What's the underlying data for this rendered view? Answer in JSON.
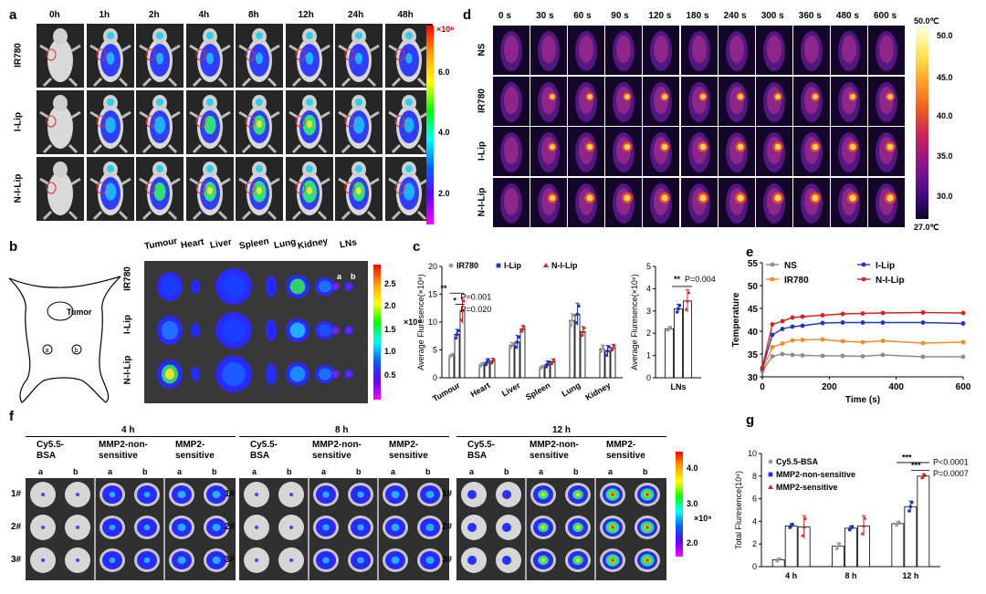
{
  "panels": {
    "a": "a",
    "b": "b",
    "c": "c",
    "d": "d",
    "e": "e",
    "f": "f",
    "g": "g"
  },
  "a": {
    "times": [
      "0h",
      "1h",
      "2h",
      "4h",
      "8h",
      "12h",
      "24h",
      "48h"
    ],
    "rows": [
      "IR780",
      "I-Lip",
      "N-I-Lip"
    ],
    "colorbar": {
      "exp": "×10⁸",
      "ticks": [
        "6.0",
        "4.0",
        "2.0"
      ]
    }
  },
  "d": {
    "times": [
      "0 s",
      "30 s",
      "60 s",
      "90 s",
      "120 s",
      "180 s",
      "240 s",
      "300 s",
      "360 s",
      "480 s",
      "600 s"
    ],
    "rows": [
      "NS",
      "IR780",
      "I-Lip",
      "N-I-Lip"
    ],
    "colorbar": {
      "top": "50.0℃",
      "bottom": "27.0℃",
      "ticks": [
        "50.0",
        "45.0",
        "40.0",
        "35.0",
        "30.0"
      ]
    }
  },
  "b": {
    "organs": [
      "Tumour",
      "Heart",
      "Liver",
      "Spleen",
      "Lung",
      "Kidney",
      "LNs"
    ],
    "rows": [
      "IR780",
      "I-Lip",
      "N-I-Lip"
    ],
    "ln_labels": [
      "a",
      "b"
    ],
    "schematic": {
      "tumor_label": "Tumor",
      "a": "a",
      "b": "b"
    },
    "colorbar": {
      "exp": "×10⁸",
      "ticks": [
        "2.5",
        "2.0",
        "1.5",
        "1.0",
        "0.5"
      ]
    }
  },
  "chart_data": [
    {
      "type": "bar",
      "panel": "c",
      "ylabel": "Average Fluresence(×10⁸)",
      "categories": [
        "Tumour",
        "Heart",
        "Liver",
        "Spleen",
        "Lung",
        "Kidney"
      ],
      "ylim": [
        0,
        20
      ],
      "yticks": [
        "0",
        "5",
        "10",
        "15",
        "20"
      ],
      "series": [
        {
          "name": "IR780",
          "values": [
            4.0,
            2.3,
            5.8,
            1.9,
            10.3,
            5.2
          ],
          "err": [
            0.3,
            0.4,
            0.5,
            0.3,
            1.2,
            0.7
          ],
          "color": "#999999",
          "marker": "circle"
        },
        {
          "name": "I-Lip",
          "values": [
            7.8,
            2.8,
            6.4,
            2.4,
            11.4,
            4.8
          ],
          "err": [
            0.9,
            0.6,
            1.2,
            0.6,
            2.0,
            1.0
          ],
          "color": "#1f35c8",
          "marker": "square"
        },
        {
          "name": "N-I-Lip",
          "values": [
            12.1,
            3.0,
            8.8,
            2.9,
            8.3,
            5.4
          ],
          "err": [
            2.3,
            0.5,
            0.6,
            0.5,
            0.9,
            0.6
          ],
          "color": "#d92020",
          "marker": "triangle"
        }
      ],
      "annotations": [
        {
          "text": "**",
          "label": "P=0.001"
        },
        {
          "text": "*",
          "label": "P=0.020"
        }
      ]
    },
    {
      "type": "bar",
      "panel": "c-right",
      "ylabel": "Average Fluresence(×10⁸)",
      "categories": [
        "LNs"
      ],
      "ylim": [
        0,
        5
      ],
      "yticks": [
        "0",
        "1",
        "2",
        "3",
        "4",
        "5"
      ],
      "series": [
        {
          "name": "IR780",
          "values": [
            2.2
          ],
          "err": [
            0.1
          ],
          "color": "#999999",
          "marker": "circle"
        },
        {
          "name": "I-Lip",
          "values": [
            3.1
          ],
          "err": [
            0.2
          ],
          "color": "#1f35c8",
          "marker": "square"
        },
        {
          "name": "N-I-Lip",
          "values": [
            3.45
          ],
          "err": [
            0.5
          ],
          "color": "#d92020",
          "marker": "triangle"
        }
      ],
      "annotations": [
        {
          "text": "**",
          "label": "P=0.004"
        }
      ]
    },
    {
      "type": "line",
      "panel": "e",
      "xlabel": "Time (s)",
      "ylabel": "Temperature",
      "x": [
        0,
        30,
        60,
        90,
        120,
        180,
        240,
        300,
        360,
        480,
        600
      ],
      "xlim": [
        0,
        600
      ],
      "ylim": [
        30,
        55
      ],
      "xticks": [
        "0",
        "200",
        "400",
        "600"
      ],
      "yticks": [
        "30",
        "35",
        "40",
        "45",
        "50",
        "55"
      ],
      "series": [
        {
          "name": "NS",
          "color": "#8c8c8c",
          "values": [
            31.2,
            34.5,
            35.0,
            34.8,
            34.7,
            34.6,
            34.6,
            34.5,
            34.8,
            34.4,
            34.4
          ]
        },
        {
          "name": "IR780",
          "color": "#f08a24",
          "values": [
            31.5,
            36.5,
            37.3,
            38.0,
            38.1,
            38.2,
            37.8,
            37.6,
            37.9,
            37.4,
            37.6
          ]
        },
        {
          "name": "I-Lip",
          "color": "#1f35c8",
          "values": [
            31.8,
            39.2,
            40.5,
            41.0,
            41.2,
            41.8,
            41.9,
            41.9,
            41.9,
            41.9,
            41.7
          ]
        },
        {
          "name": "N-I-Lip",
          "color": "#d92020",
          "values": [
            32.0,
            41.5,
            42.2,
            43.0,
            43.2,
            43.5,
            43.8,
            43.9,
            44.0,
            44.1,
            44.0
          ]
        }
      ]
    },
    {
      "type": "bar",
      "panel": "g",
      "ylabel": "Total Fluresence(10⁹)",
      "categories": [
        "4 h",
        "8 h",
        "12 h"
      ],
      "ylim": [
        0,
        10
      ],
      "yticks": [
        "0",
        "2",
        "4",
        "6",
        "8",
        "10"
      ],
      "series": [
        {
          "name": "Cy5.5-BSA",
          "values": [
            0.6,
            1.8,
            3.8
          ],
          "err": [
            0.15,
            0.3,
            0.2
          ],
          "color": "#999999",
          "marker": "circle"
        },
        {
          "name": "MMP2-non-sensitive",
          "values": [
            3.6,
            3.4,
            5.3
          ],
          "err": [
            0.2,
            0.2,
            0.5
          ],
          "color": "#1f35c8",
          "marker": "square"
        },
        {
          "name": "MMP2-sensitive",
          "values": [
            3.5,
            3.6,
            8.0
          ],
          "err": [
            1.0,
            0.9,
            0.2
          ],
          "color": "#d92020",
          "marker": "triangle"
        }
      ],
      "annotations": [
        {
          "text": "***",
          "label": "P<0.0001"
        },
        {
          "text": "***",
          "label": "P=0.0007"
        }
      ]
    }
  ],
  "f": {
    "groups": [
      {
        "time": "4 h",
        "cols": [
          "Cy5.5-\nBSA",
          "MMP2-non-\nsensitive",
          "MMP2-\nsensitive"
        ]
      },
      {
        "time": "8 h",
        "cols": [
          "Cy5.5-\nBSA",
          "MMP2-non-\nsensitive",
          "MMP2-\nsensitive"
        ]
      },
      {
        "time": "12 h",
        "cols": [
          "Cy5.5-\nBSA",
          "MMP2-non-\nsensitive",
          "MMP2-\nsensitive"
        ]
      }
    ],
    "ab": [
      "a",
      "b"
    ],
    "rows": [
      "1#",
      "2#",
      "3#"
    ],
    "colorbar": {
      "exp": "×10⁹",
      "ticks": [
        "4.0",
        "3.0",
        "2.0"
      ]
    }
  }
}
